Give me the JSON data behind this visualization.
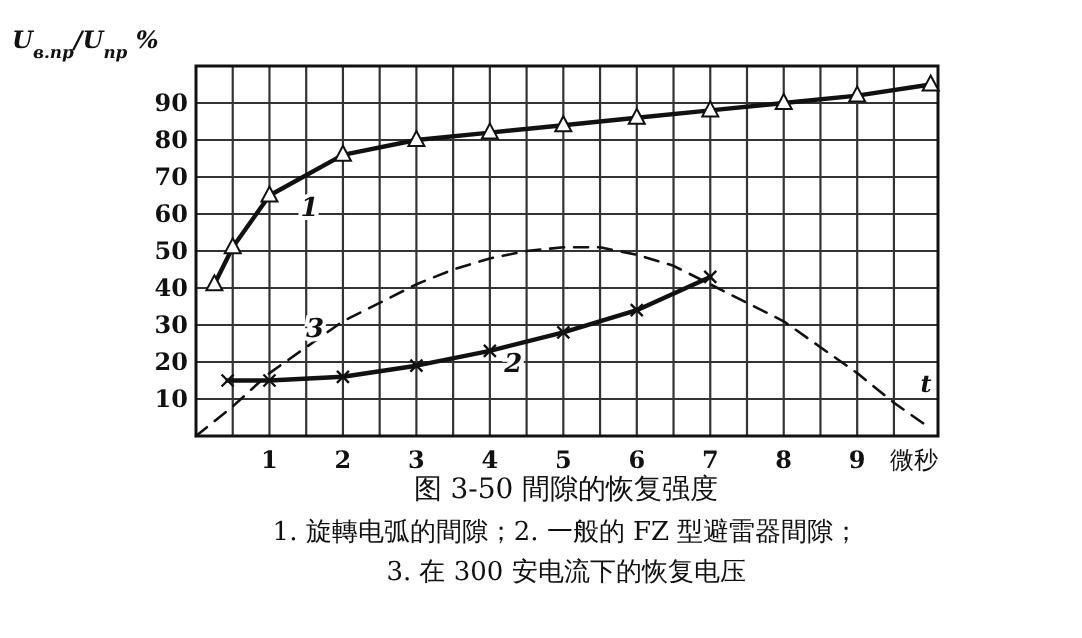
{
  "chart_data": {
    "type": "line",
    "title": "图 3-50  間隙的恢复强度",
    "ylabel": "U$_{в.пр}$/U$_{пр}$ %",
    "xlabel": "微秒",
    "xlim": [
      0,
      10.1
    ],
    "ylim": [
      0,
      100
    ],
    "xticks": [
      {
        "value": 0.5,
        "label": null
      },
      1,
      {
        "value": 1.5,
        "label": null
      },
      2,
      {
        "value": 2.5,
        "label": null
      },
      3,
      {
        "value": 3.5,
        "label": null
      },
      4,
      {
        "value": 4.5,
        "label": null
      },
      5,
      {
        "value": 5.5,
        "label": null
      },
      6,
      {
        "value": 6.5,
        "label": null
      },
      7,
      {
        "value": 7.5,
        "label": null
      },
      8,
      {
        "value": 8.5,
        "label": null
      },
      9,
      {
        "value": 9.5,
        "label": null
      }
    ],
    "yticks": [
      10,
      20,
      30,
      40,
      50,
      60,
      70,
      80,
      90
    ],
    "grid": true,
    "series": [
      {
        "name": "1",
        "color": "#111111",
        "marker": "triangle",
        "line_style": "solid",
        "x": [
          0.25,
          0.5,
          1,
          2,
          3,
          4,
          5,
          6,
          7,
          8,
          9,
          10
        ],
        "values": [
          41,
          51,
          65,
          76,
          80,
          82,
          84,
          86,
          88,
          90,
          92,
          95
        ]
      },
      {
        "name": "2",
        "color": "#111111",
        "marker": "cross",
        "line_style": "solid",
        "x": [
          0.43,
          1,
          2,
          3,
          4,
          5,
          6,
          7
        ],
        "values": [
          15,
          15,
          16,
          19,
          23,
          28,
          34,
          43
        ]
      },
      {
        "name": "3",
        "color": "#111111",
        "marker": "none",
        "line_style": "dashed",
        "x": [
          0,
          0.5,
          1,
          1.5,
          2,
          2.5,
          3,
          3.5,
          4,
          4.5,
          5,
          5.5,
          6,
          6.5,
          7,
          7.5,
          8,
          8.5,
          9,
          9.5,
          10
        ],
        "values": [
          0,
          8,
          17,
          24,
          31,
          36,
          41,
          45,
          48,
          50,
          51,
          51,
          49,
          46,
          41,
          36,
          31,
          24,
          17,
          9,
          2
        ]
      }
    ],
    "annotations": [
      "t",
      "1. 旋轉电弧的間隙；2. 一般的 FZ 型避雷器間隙；",
      "3. 在 300 安电流下的恢复电压"
    ]
  }
}
